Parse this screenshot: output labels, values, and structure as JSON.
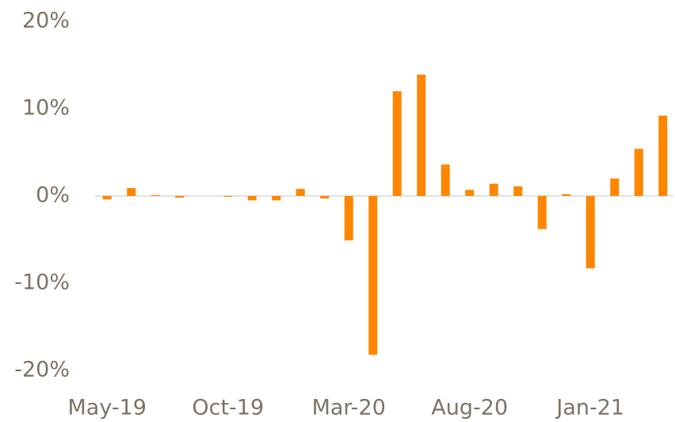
{
  "chart_data": {
    "type": "bar",
    "categories": [
      "May-19",
      null,
      null,
      null,
      null,
      "Oct-19",
      null,
      null,
      null,
      null,
      "Mar-20",
      null,
      null,
      null,
      null,
      "Aug-20",
      null,
      null,
      null,
      null,
      "Jan-21",
      null,
      null,
      null
    ],
    "values": [
      -0.4,
      0.9,
      0.1,
      -0.2,
      0,
      -0.1,
      -0.5,
      -0.5,
      0.8,
      -0.3,
      -5.1,
      -18.2,
      12.0,
      13.9,
      3.6,
      0.7,
      1.4,
      1.1,
      -3.8,
      0.2,
      -8.3,
      2.0,
      5.4,
      9.2
    ],
    "color": "#ff8600",
    "ylim": [
      -20,
      20
    ],
    "yticks": [
      {
        "value": -20,
        "label": "-20%"
      },
      {
        "value": -10,
        "label": "-10%"
      },
      {
        "value": 0,
        "label": "0%"
      },
      {
        "value": 10,
        "label": "10%"
      },
      {
        "value": 20,
        "label": "20%"
      }
    ],
    "grid": false
  }
}
